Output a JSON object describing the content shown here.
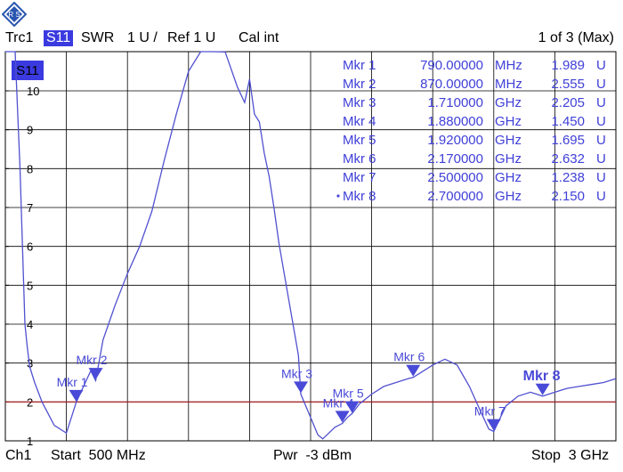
{
  "header": {
    "trace": "Trc1",
    "param": "S11",
    "format": "SWR",
    "scale": "1 U /",
    "ref": "Ref 1 U",
    "cal": "Cal int",
    "page": "1 of 3 (Max)"
  },
  "footer": {
    "channel": "Ch1",
    "start": "Start  500 MHz",
    "power": "Pwr  -3 dBm",
    "stop": "Stop  3 GHz"
  },
  "colors": {
    "trace": "#5050d0",
    "marker": "#4a4ad8",
    "limit": "#b01818",
    "grid": "#000000"
  },
  "chart_data": {
    "type": "line",
    "trace_label": "S11",
    "xlim": [
      500,
      3000
    ],
    "ylim": [
      1,
      11
    ],
    "y_ticks": [
      "1",
      "2",
      "3",
      "4",
      "5",
      "6",
      "7",
      "8",
      "9",
      "10"
    ],
    "limit_line": 2,
    "trace": {
      "x": [
        500,
        540,
        560,
        580,
        590,
        600,
        620,
        650,
        700,
        750,
        790,
        820,
        850,
        870,
        900,
        950,
        1000,
        1050,
        1100,
        1150,
        1200,
        1250,
        1300,
        1350,
        1400,
        1450,
        1480,
        1500,
        1520,
        1540,
        1560,
        1580,
        1600,
        1620,
        1650,
        1700,
        1710,
        1750,
        1780,
        1800,
        1850,
        1880,
        1900,
        1920,
        1950,
        2000,
        2050,
        2100,
        2150,
        2170,
        2200,
        2250,
        2300,
        2350,
        2400,
        2450,
        2480,
        2500,
        2550,
        2600,
        2650,
        2700,
        2750,
        2800,
        2850,
        2900,
        2950,
        3000
      ],
      "y": [
        11.5,
        11.2,
        8,
        4,
        3.4,
        2.9,
        2.5,
        2.0,
        1.4,
        1.2,
        1.99,
        2.4,
        2.8,
        2.55,
        3.6,
        4.5,
        5.3,
        6.0,
        6.9,
        8.2,
        9.4,
        10.5,
        11.3,
        11.4,
        11.0,
        10.1,
        9.7,
        10.3,
        9.4,
        9.2,
        8.4,
        7.8,
        7.0,
        6.1,
        5.0,
        3.2,
        2.2,
        1.6,
        1.15,
        1.05,
        1.35,
        1.45,
        1.6,
        1.7,
        1.95,
        2.2,
        2.4,
        2.5,
        2.6,
        2.63,
        2.75,
        2.95,
        3.1,
        2.95,
        2.4,
        1.7,
        1.3,
        1.24,
        1.9,
        2.15,
        2.25,
        2.15,
        2.25,
        2.35,
        2.4,
        2.45,
        2.5,
        2.6
      ]
    },
    "markers": [
      {
        "label": "Mkr 1",
        "name": "Mkr 1",
        "x": 790,
        "y": 1.989,
        "freq": "790.00000",
        "unit": "MHz",
        "value": "1.989",
        "vunit": "U",
        "active": false
      },
      {
        "label": "Mkr 2",
        "name": "Mkr 2",
        "x": 870,
        "y": 2.555,
        "freq": "870.00000",
        "unit": "MHz",
        "value": "2.555",
        "vunit": "U",
        "active": false
      },
      {
        "label": "Mkr 3",
        "name": "Mkr 3",
        "x": 1710,
        "y": 2.205,
        "freq": "1.710000",
        "unit": "GHz",
        "value": "2.205",
        "vunit": "U",
        "active": false
      },
      {
        "label": "Mkr 4",
        "name": "Mkr 4",
        "x": 1880,
        "y": 1.45,
        "freq": "1.880000",
        "unit": "GHz",
        "value": "1.450",
        "vunit": "U",
        "active": false
      },
      {
        "label": "Mkr 5",
        "name": "Mkr 5",
        "x": 1920,
        "y": 1.695,
        "freq": "1.920000",
        "unit": "GHz",
        "value": "1.695",
        "vunit": "U",
        "active": false
      },
      {
        "label": "Mkr 6",
        "name": "Mkr 6",
        "x": 2170,
        "y": 2.632,
        "freq": "2.170000",
        "unit": "GHz",
        "value": "2.632",
        "vunit": "U",
        "active": false
      },
      {
        "label": "Mkr 7",
        "name": "Mkr 7",
        "x": 2500,
        "y": 1.238,
        "freq": "2.500000",
        "unit": "GHz",
        "value": "1.238",
        "vunit": "U",
        "active": false
      },
      {
        "label": "Mkr 8",
        "name": "Mkr 8",
        "x": 2700,
        "y": 2.15,
        "freq": "2.700000",
        "unit": "GHz",
        "value": "2.150",
        "vunit": "U",
        "active": true
      }
    ]
  }
}
